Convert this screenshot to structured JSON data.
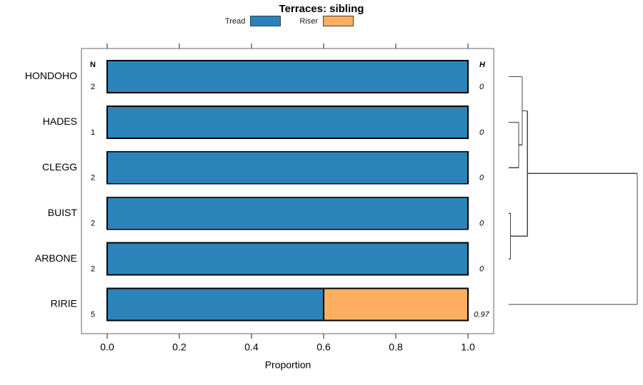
{
  "title": "Terraces: sibling",
  "legend": {
    "items": [
      {
        "label": "Tread",
        "color": "#2B83BA"
      },
      {
        "label": "Riser",
        "color": "#FDAE61"
      }
    ]
  },
  "columns": {
    "left_header": "N",
    "right_header": "H"
  },
  "chart_data": {
    "type": "bar",
    "orientation": "horizontal",
    "stacked": true,
    "title": "Terraces: sibling",
    "xlabel": "Proportion",
    "xlim": [
      0,
      1
    ],
    "x_ticks": [
      {
        "value": 0.0,
        "label": "0.0"
      },
      {
        "value": 0.2,
        "label": "0.2"
      },
      {
        "value": 0.4,
        "label": "0.4"
      },
      {
        "value": 0.6,
        "label": "0.6"
      },
      {
        "value": 0.8,
        "label": "0.8"
      },
      {
        "value": 1.0,
        "label": "1.0"
      }
    ],
    "categories": [
      "HONDOHO",
      "HADES",
      "CLEGG",
      "BUIST",
      "ARBONE",
      "RIRIE"
    ],
    "n_values": [
      "2",
      "1",
      "2",
      "2",
      "2",
      "5"
    ],
    "h_values": [
      "0",
      "0",
      "0",
      "0",
      "0",
      "0.97"
    ],
    "series": [
      {
        "name": "Tread",
        "color": "#2B83BA",
        "values": [
          1,
          1,
          1,
          1,
          1,
          0.6
        ]
      },
      {
        "name": "Riser",
        "color": "#FDAE61",
        "values": [
          0,
          0,
          0,
          0,
          0,
          0.4
        ]
      }
    ],
    "legend_position": "top",
    "grid": false,
    "dendrogram": {
      "note_heights_normalized_0_to_1": true,
      "merges": [
        {
          "a": "HADES",
          "b": "CLEGG",
          "height": 0.078
        },
        {
          "a": "HONDOHO",
          "b": "node0",
          "height": 0.106
        },
        {
          "a": "BUIST",
          "b": "ARBONE",
          "height": 0.014
        },
        {
          "a": "node1",
          "b": "node2",
          "height": 0.146
        },
        {
          "a": "node3",
          "b": "RIRIE",
          "height": 1.0
        }
      ]
    }
  }
}
